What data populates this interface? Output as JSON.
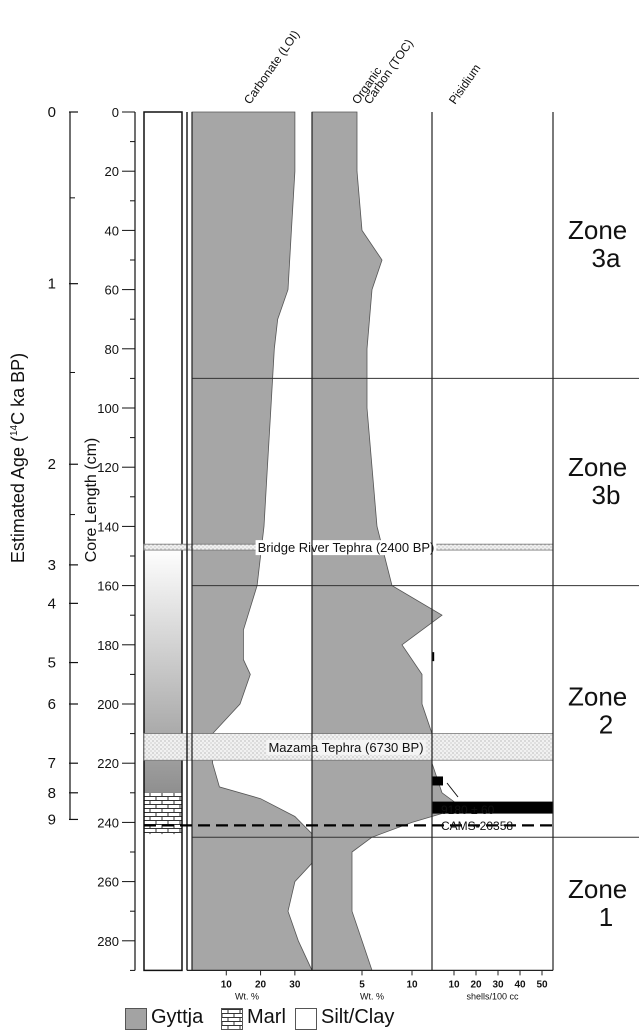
{
  "chart_data": {
    "type": "area",
    "y_axis_age": {
      "label": "Estimated Age (¹⁴C ka BP)",
      "label_main": "Estimated Age (",
      "label_sup": "14",
      "label_tail": "C ka BP)",
      "ticks": [
        {
          "label": "0",
          "depth": 0
        },
        {
          "label": "1",
          "depth": 58
        },
        {
          "label": "2",
          "depth": 119
        },
        {
          "label": "3",
          "depth": 153
        },
        {
          "label": "4",
          "depth": 166
        },
        {
          "label": "5",
          "depth": 186
        },
        {
          "label": "6",
          "depth": 200
        },
        {
          "label": "7",
          "depth": 220
        },
        {
          "label": "8",
          "depth": 230
        },
        {
          "label": "9",
          "depth": 239
        }
      ],
      "minor_ticks": [
        29,
        88,
        136
      ]
    },
    "y_axis_depth": {
      "label": "Core Length (cm)",
      "ylim": [
        0,
        290
      ],
      "ticks": [
        0,
        20,
        40,
        60,
        80,
        100,
        120,
        140,
        160,
        180,
        200,
        220,
        240,
        260,
        280
      ]
    },
    "columns": [
      {
        "name": "Carbonate (LOI)",
        "unit": "Wt. %",
        "xlim": [
          0,
          35
        ],
        "xticks": [
          10,
          20,
          30
        ],
        "depth": [
          0,
          20,
          40,
          60,
          70,
          80,
          100,
          120,
          140,
          160,
          175,
          185,
          190,
          200,
          210,
          220,
          228,
          232,
          238,
          245,
          250,
          260,
          270,
          280,
          290
        ],
        "values": [
          30,
          30,
          29,
          28,
          25,
          24,
          23,
          22,
          21,
          19,
          15,
          15,
          17,
          14,
          6,
          6,
          8,
          20,
          30,
          36,
          38,
          30,
          28,
          31,
          35
        ]
      },
      {
        "name": "Organic Carbon (TOC)",
        "unit": "Wt. %",
        "xlim": [
          0,
          12
        ],
        "xticks": [
          5,
          10
        ],
        "depth": [
          0,
          20,
          40,
          50,
          60,
          80,
          100,
          120,
          140,
          160,
          170,
          180,
          190,
          200,
          210,
          220,
          230,
          235,
          240,
          245,
          250,
          270,
          280,
          290
        ],
        "values": [
          4.5,
          4.5,
          5,
          7,
          6,
          5.5,
          5.5,
          6,
          6.5,
          8,
          13,
          9,
          11,
          11,
          12,
          12,
          13,
          15,
          10,
          6,
          4,
          4,
          5,
          6
        ]
      },
      {
        "name": "Pisidium",
        "unit": "shells/100 cc",
        "xlim": [
          0,
          55
        ],
        "xticks": [
          10,
          20,
          30,
          40,
          50
        ],
        "bars": [
          {
            "depth": 184,
            "value": 1
          },
          {
            "depth": 226,
            "value": 5
          },
          {
            "depth": 235,
            "value": 55
          }
        ]
      }
    ],
    "tephras": [
      {
        "label": "Bridge River Tephra (2400 BP)",
        "top": 146,
        "bottom": 148
      },
      {
        "label": "Mazama Tephra (6730 BP)",
        "top": 210,
        "bottom": 219
      }
    ],
    "date": {
      "line1": "9180 ± 60",
      "line2": "CAMS-20358",
      "depth": 241
    },
    "zones": [
      {
        "line1": "Zone",
        "line2": "3a",
        "top": 0,
        "bottom": 90
      },
      {
        "line1": "Zone",
        "line2": "3b",
        "top": 90,
        "bottom": 160
      },
      {
        "line1": "Zone",
        "line2": "2",
        "top": 160,
        "bottom": 245
      },
      {
        "line1": "Zone",
        "line2": "1",
        "top": 245,
        "bottom": 290
      }
    ],
    "lithology": [
      {
        "type": "Silt/Clay",
        "top": 0,
        "bottom": 147
      },
      {
        "type": "Gyttja",
        "top": 147,
        "bottom": 230
      },
      {
        "type": "Marl",
        "top": 230,
        "bottom": 244
      },
      {
        "type": "Silt/Clay",
        "top": 244,
        "bottom": 290
      }
    ],
    "legend": [
      {
        "label": "Gyttja",
        "color": "#a3a3a3"
      },
      {
        "label": "Marl",
        "color": "#d8d8d8"
      },
      {
        "label": "Silt/Clay",
        "color": "#ffffff"
      }
    ],
    "grid": false
  }
}
